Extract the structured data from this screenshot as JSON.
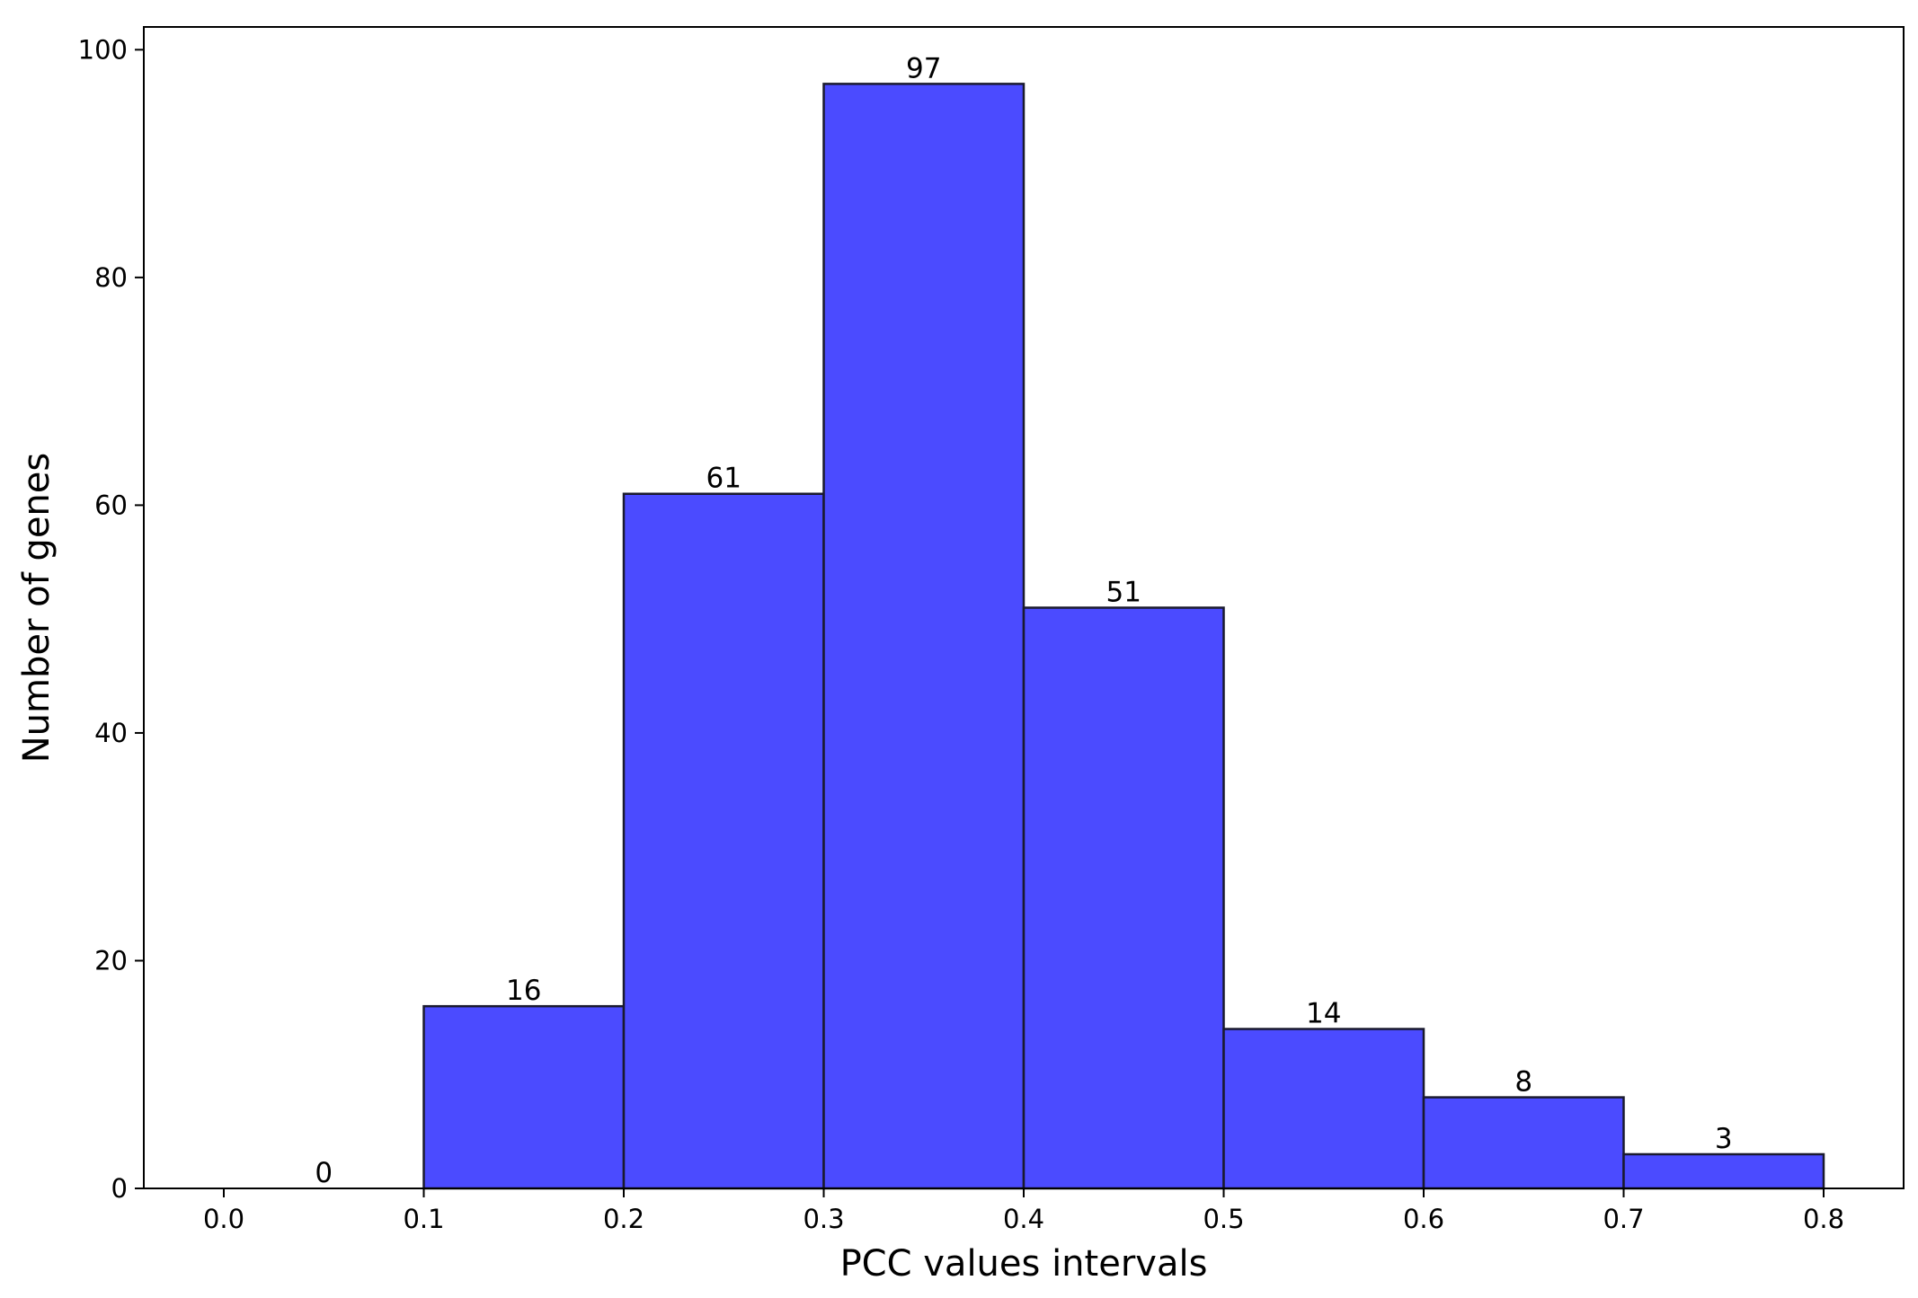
{
  "chart_data": {
    "type": "bar",
    "title": "",
    "xlabel": "PCC values intervals",
    "ylabel": "Number of genes",
    "bins": [
      {
        "from": 0.0,
        "to": 0.1,
        "value": 0
      },
      {
        "from": 0.1,
        "to": 0.2,
        "value": 16
      },
      {
        "from": 0.2,
        "to": 0.3,
        "value": 61
      },
      {
        "from": 0.3,
        "to": 0.4,
        "value": 97
      },
      {
        "from": 0.4,
        "to": 0.5,
        "value": 51
      },
      {
        "from": 0.5,
        "to": 0.6,
        "value": 14
      },
      {
        "from": 0.6,
        "to": 0.7,
        "value": 8
      },
      {
        "from": 0.7,
        "to": 0.8,
        "value": 3
      }
    ],
    "bar_labels": [
      "0",
      "16",
      "61",
      "97",
      "51",
      "14",
      "8",
      "3"
    ],
    "xticks": [
      "0.0",
      "0.1",
      "0.2",
      "0.3",
      "0.4",
      "0.5",
      "0.6",
      "0.7",
      "0.8"
    ],
    "yticks": [
      "0",
      "20",
      "40",
      "60",
      "80",
      "100"
    ],
    "xlim": [
      -0.04,
      0.84
    ],
    "ylim": [
      0,
      102
    ],
    "grid": false,
    "bar_color": "#4b4bff",
    "edge_color": "#1a1a2e"
  }
}
